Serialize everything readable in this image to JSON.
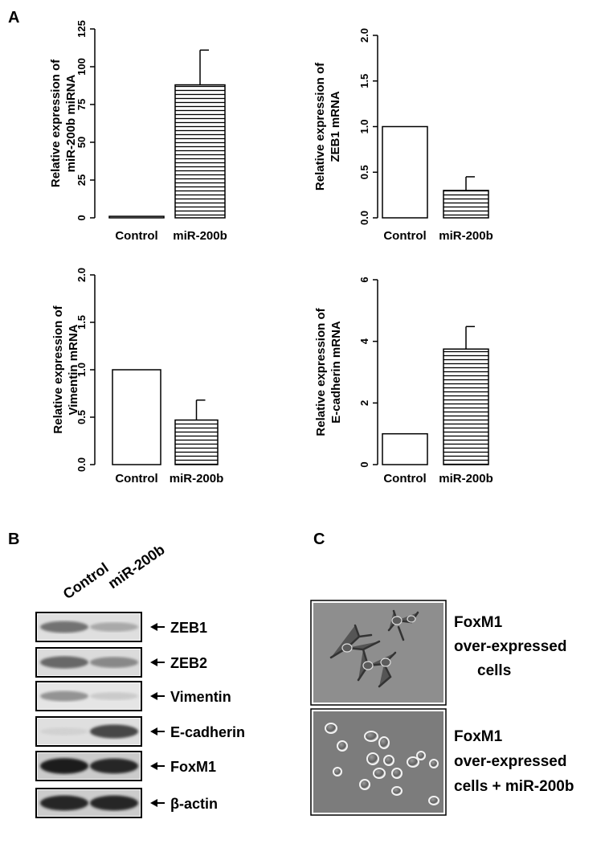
{
  "panels": {
    "a": "A",
    "b": "B",
    "c": "C"
  },
  "chart_data": [
    {
      "type": "bar",
      "categories": [
        "Control",
        "miR-200b"
      ],
      "values": [
        1,
        88
      ],
      "errors": [
        0,
        23
      ],
      "fills": [
        "open",
        "hatched"
      ],
      "ylabel": [
        "Relative expression of",
        "miR-200b miRNA"
      ],
      "ylim": [
        0,
        125
      ],
      "yticks": [
        0,
        25,
        50,
        75,
        100,
        125
      ]
    },
    {
      "type": "bar",
      "categories": [
        "Control",
        "miR-200b"
      ],
      "values": [
        1.0,
        0.3
      ],
      "errors": [
        0,
        0.15
      ],
      "fills": [
        "open",
        "hatched"
      ],
      "ylabel": [
        "Relative expression of",
        "ZEB1 mRNA"
      ],
      "ylim": [
        0,
        2.0
      ],
      "yticks": [
        "0.0",
        "0.5",
        "1.0",
        "1.5",
        "2.0"
      ]
    },
    {
      "type": "bar",
      "categories": [
        "Control",
        "miR-200b"
      ],
      "values": [
        1.0,
        0.47
      ],
      "errors": [
        0,
        0.21
      ],
      "fills": [
        "open",
        "hatched"
      ],
      "ylabel": [
        "Relative expression of",
        "Vimentin mRNA"
      ],
      "ylim": [
        0,
        2.0
      ],
      "yticks": [
        "0.0",
        "0.5",
        "1.0",
        "1.5",
        "2.0"
      ]
    },
    {
      "type": "bar",
      "categories": [
        "Control",
        "miR-200b"
      ],
      "values": [
        1.0,
        3.75
      ],
      "errors": [
        0,
        0.73
      ],
      "fills": [
        "open",
        "hatched"
      ],
      "ylabel": [
        "Relative expression of",
        "E-cadherin mRNA"
      ],
      "ylim": [
        0,
        6
      ],
      "yticks": [
        0,
        2,
        4,
        6
      ]
    }
  ],
  "western_blot": {
    "lanes": [
      "Control",
      "miR-200b"
    ],
    "bands": [
      {
        "label": "ZEB1",
        "intensity": [
          0.55,
          0.3
        ]
      },
      {
        "label": "ZEB2",
        "intensity": [
          0.6,
          0.45
        ]
      },
      {
        "label": "Vimentin",
        "intensity": [
          0.4,
          0.15
        ]
      },
      {
        "label": "E-cadherin",
        "intensity": [
          0.12,
          0.75
        ]
      },
      {
        "label": "FoxM1",
        "intensity": [
          0.95,
          0.9
        ]
      },
      {
        "label": "β-actin",
        "intensity": [
          0.9,
          0.9
        ]
      }
    ]
  },
  "micrographs": [
    {
      "caption": [
        "FoxM1",
        "over-expressed",
        "cells"
      ]
    },
    {
      "caption": [
        "FoxM1",
        "over-expressed",
        "cells + miR-200b"
      ]
    }
  ]
}
